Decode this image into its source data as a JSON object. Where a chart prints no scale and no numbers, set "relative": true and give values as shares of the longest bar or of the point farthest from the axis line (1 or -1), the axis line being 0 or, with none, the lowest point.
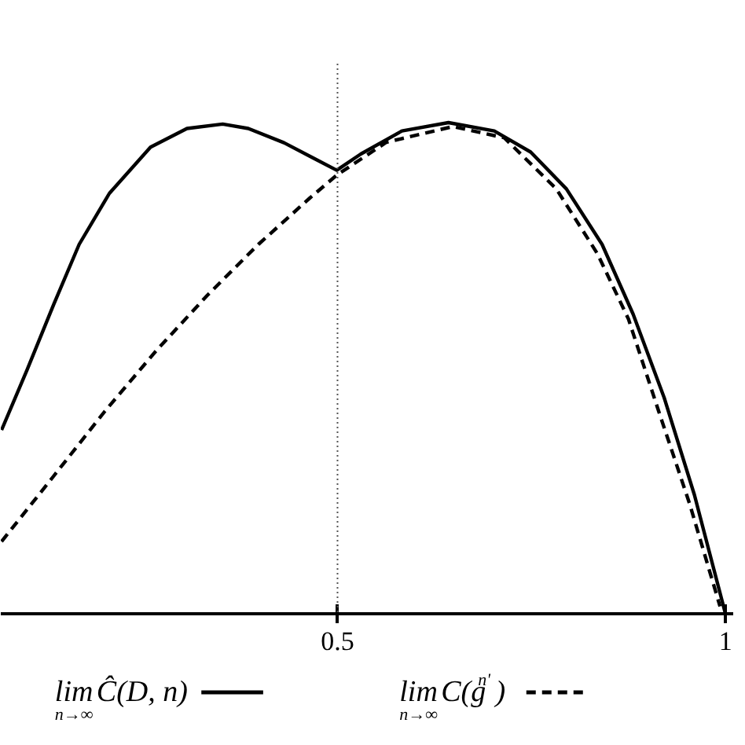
{
  "chart_data": {
    "type": "line",
    "relative": true,
    "xlim": [
      0.066,
      1.01
    ],
    "xticks": [
      {
        "value": 0.5,
        "label": "0.5"
      },
      {
        "value": 1,
        "label": "1"
      }
    ],
    "tick_labels": "x",
    "legend": "bottom",
    "ref_lines": [
      {
        "axis": "x",
        "value": 0.5,
        "line_style": "dotted",
        "color": "#555555"
      }
    ],
    "series": [
      {
        "name": "lim$_{n→∞}$Ĉ(D, n)",
        "color": "#000000",
        "line_style": "solid",
        "x": [
          0.067,
          0.1,
          0.134,
          0.167,
          0.206,
          0.259,
          0.306,
          0.352,
          0.385,
          0.431,
          0.471,
          0.499,
          0.53,
          0.583,
          0.643,
          0.702,
          0.749,
          0.795,
          0.841,
          0.881,
          0.921,
          0.96,
          1.0
        ],
        "values": [
          0.374,
          0.497,
          0.629,
          0.752,
          0.856,
          0.95,
          0.988,
          0.997,
          0.988,
          0.959,
          0.926,
          0.903,
          0.936,
          0.983,
          1.0,
          0.983,
          0.94,
          0.865,
          0.752,
          0.61,
          0.44,
          0.242,
          0.0
        ]
      },
      {
        "name": "lim$_{n→∞}$C(g$^{n'}$)",
        "color": "#000000",
        "line_style": "dashed",
        "x": [
          0.067,
          0.134,
          0.2,
          0.266,
          0.332,
          0.398,
          0.464,
          0.499,
          0.563,
          0.649,
          0.715,
          0.782,
          0.835,
          0.875,
          0.914,
          0.954,
          0.993
        ],
        "values": [
          0.147,
          0.28,
          0.412,
          0.535,
          0.648,
          0.752,
          0.846,
          0.893,
          0.96,
          0.992,
          0.969,
          0.865,
          0.733,
          0.6,
          0.412,
          0.223,
          0.015
        ]
      }
    ]
  }
}
